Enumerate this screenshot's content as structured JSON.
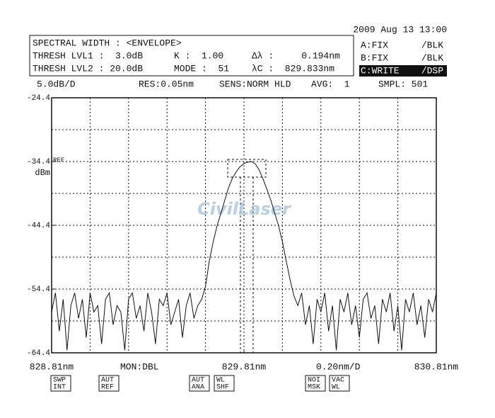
{
  "header": {
    "datetime": "2009 Aug 13 13:00",
    "analysis": [
      [
        "SPECTRAL WIDTH : <ENVELOPE>",
        "",
        ""
      ],
      [
        "THRESH LVL1 :  3.0dB",
        "K :  1.00",
        "Δλ :     0.194nm"
      ],
      [
        "THRESH LVL2 : 20.0dB",
        "MODE :  51",
        "λC :  829.833nm"
      ]
    ],
    "traces": [
      "A:FIX      /BLK",
      "B:FIX      /BLK",
      "C:WRITE    /DSP"
    ],
    "conditions": [
      "5.0dB/D",
      "RES:0.05nm",
      "SENS:NORM HLD",
      "AVG:  1",
      "SMPL: 501"
    ]
  },
  "chart_data": {
    "type": "line",
    "color": "#111111",
    "grid": true,
    "y_divisions": 8,
    "x_divisions": 10,
    "ylim": [
      -64.4,
      -24.4
    ],
    "yticks": [
      -24.4,
      -34.4,
      -44.4,
      -54.4,
      -64.4
    ],
    "xlim": [
      828.81,
      830.81
    ],
    "xticks": [
      {
        "value": 828.81,
        "label": "828.81nm"
      },
      {
        "value": 829.81,
        "label": "829.81nm"
      },
      {
        "value": 830.81,
        "label": "830.81nm"
      }
    ],
    "ref_label": "REF",
    "y_unit": "dBm",
    "watermark": "CivilLaser",
    "x": [
      828.81,
      828.83,
      828.85,
      828.87,
      828.89,
      828.91,
      828.93,
      828.95,
      828.97,
      828.99,
      829.01,
      829.03,
      829.05,
      829.07,
      829.09,
      829.11,
      829.13,
      829.15,
      829.17,
      829.19,
      829.21,
      829.23,
      829.25,
      829.27,
      829.29,
      829.31,
      829.33,
      829.35,
      829.37,
      829.39,
      829.41,
      829.43,
      829.45,
      829.47,
      829.49,
      829.51,
      829.53,
      829.55,
      829.57,
      829.59,
      829.61,
      829.63,
      829.65,
      829.67,
      829.69,
      829.71,
      829.73,
      829.75,
      829.77,
      829.79,
      829.81,
      829.83,
      829.85,
      829.87,
      829.89,
      829.91,
      829.93,
      829.95,
      829.97,
      829.99,
      830.01,
      830.03,
      830.05,
      830.07,
      830.09,
      830.11,
      830.13,
      830.15,
      830.17,
      830.19,
      830.21,
      830.23,
      830.25,
      830.27,
      830.29,
      830.31,
      830.33,
      830.35,
      830.37,
      830.39,
      830.41,
      830.43,
      830.45,
      830.47,
      830.49,
      830.51,
      830.53,
      830.55,
      830.57,
      830.59,
      830.61,
      830.63,
      830.65,
      830.67,
      830.69,
      830.71,
      830.73,
      830.75,
      830.77,
      830.79,
      830.81
    ],
    "values": [
      -58,
      -55,
      -61,
      -56,
      -64,
      -57,
      -55,
      -59,
      -56,
      -62,
      -55,
      -58,
      -57,
      -63,
      -56,
      -55,
      -60,
      -57,
      -58,
      -64,
      -56,
      -55,
      -59,
      -57,
      -61,
      -55,
      -58,
      -63,
      -56,
      -57,
      -55,
      -60,
      -58,
      -56,
      -62,
      -57,
      -55,
      -59,
      -57,
      -56,
      -54,
      -50,
      -47,
      -44.5,
      -42.5,
      -40.5,
      -38.5,
      -37,
      -36,
      -35.2,
      -34.7,
      -34.5,
      -34.4,
      -34.8,
      -35.8,
      -37.2,
      -38.8,
      -40.5,
      -42.5,
      -44.5,
      -47,
      -50,
      -53,
      -55.5,
      -57,
      -55,
      -60,
      -57,
      -63,
      -56,
      -58,
      -55,
      -61,
      -57,
      -64,
      -56,
      -58,
      -55,
      -60,
      -57,
      -62,
      -56,
      -55,
      -59,
      -57,
      -63,
      -56,
      -58,
      -55,
      -61,
      -57,
      -64,
      -56,
      -58,
      -55,
      -60,
      -57,
      -62,
      -56,
      -58,
      -55
    ]
  },
  "footer": {
    "monitor": "MON:DBL",
    "x_scale": "0.20nm/D",
    "buttons": [
      [
        "SWP",
        "INT"
      ],
      [
        "AUT",
        "REF"
      ],
      [
        "AUT",
        "ANA"
      ],
      [
        "WL",
        "SHF"
      ],
      [
        "NOI",
        "MSK"
      ],
      [
        "VAC",
        "WL"
      ]
    ]
  }
}
